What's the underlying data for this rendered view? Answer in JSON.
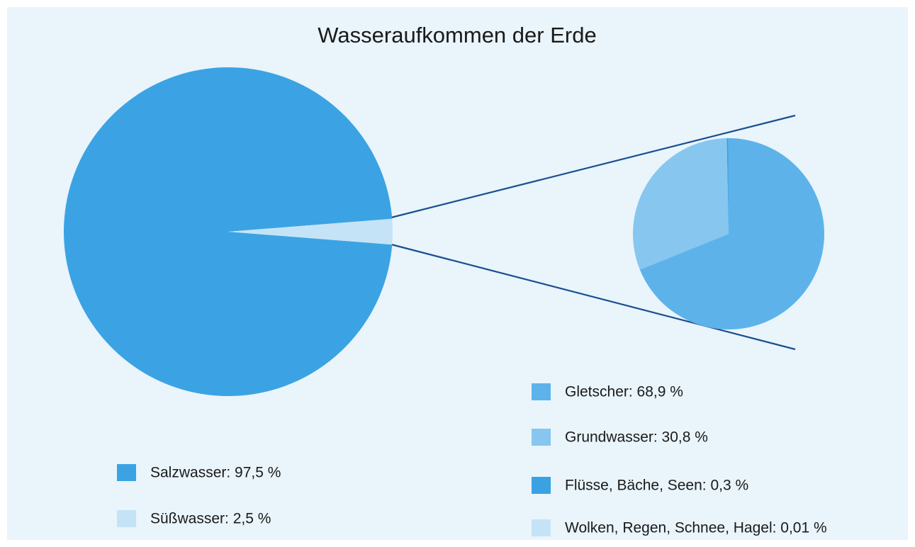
{
  "chart_data": [
    {
      "type": "pie",
      "title": "Wasseraufkommen der Erde",
      "categories": [
        "Salzwasser: 97,5 %",
        "Süßwasser: 2,5 %"
      ],
      "values": [
        97.5,
        2.5
      ],
      "colors": [
        "#3ba3e3",
        "#c5e3f6"
      ]
    },
    {
      "type": "pie",
      "categories": [
        "Gletscher: 68,9 %",
        "Grundwasser: 30,8 %",
        "Flüsse, Bäche, Seen: 0,3 %",
        "Wolken, Regen, Schnee, Hagel: 0,01 %"
      ],
      "values": [
        68.9,
        30.8,
        0.3,
        0.01
      ],
      "colors": [
        "#5db3e9",
        "#87c6ef",
        "#3aa2e2",
        "#c5e3f6"
      ]
    }
  ]
}
